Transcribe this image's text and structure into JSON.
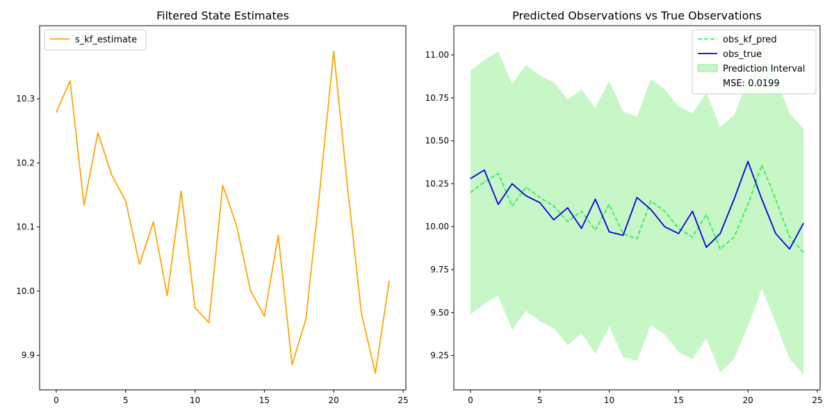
{
  "chart_data": [
    {
      "type": "line",
      "title": "Filtered State Estimates",
      "xlabel": "",
      "ylabel": "",
      "xlim": [
        -1.2,
        25.2
      ],
      "ylim": [
        9.846,
        10.414
      ],
      "xticks": [
        0,
        5,
        10,
        15,
        20,
        25
      ],
      "xtick_labels": [
        "0",
        "5",
        "10",
        "15",
        "20",
        "25"
      ],
      "yticks": [
        9.9,
        10.0,
        10.1,
        10.2,
        10.3
      ],
      "ytick_labels": [
        "9.9",
        "10.0",
        "10.1",
        "10.2",
        "10.3"
      ],
      "grid": false,
      "legend_position": "upper-left",
      "series": [
        {
          "name": "s_kf_estimate",
          "color": "#FFA500",
          "style": "solid",
          "x": [
            0,
            1,
            2,
            3,
            4,
            5,
            6,
            7,
            8,
            9,
            10,
            11,
            12,
            13,
            14,
            15,
            16,
            17,
            18,
            19,
            20,
            21,
            22,
            23,
            24
          ],
          "y": [
            10.279,
            10.328,
            10.134,
            10.247,
            10.181,
            10.141,
            10.042,
            10.108,
            9.993,
            10.156,
            9.974,
            9.951,
            10.165,
            10.102,
            10.001,
            9.961,
            10.087,
            9.885,
            9.957,
            10.158,
            10.374,
            10.161,
            9.965,
            9.872,
            10.016
          ]
        }
      ]
    },
    {
      "type": "line",
      "title": "Predicted Observations vs True Observations",
      "xlabel": "",
      "ylabel": "",
      "xlim": [
        -1.2,
        25.2
      ],
      "ylim": [
        9.05,
        11.17
      ],
      "xticks": [
        0,
        5,
        10,
        15,
        20,
        25
      ],
      "xtick_labels": [
        "0",
        "5",
        "10",
        "15",
        "20",
        "25"
      ],
      "yticks": [
        9.25,
        9.5,
        9.75,
        10.0,
        10.25,
        10.5,
        10.75,
        11.0
      ],
      "ytick_labels": [
        "9.25",
        "9.50",
        "9.75",
        "10.00",
        "10.25",
        "10.50",
        "10.75",
        "11.00"
      ],
      "grid": false,
      "legend_position": "upper-right",
      "annotation": "MSE: 0.0199",
      "band": {
        "name": "Prediction Interval",
        "color": "#90EE90",
        "x": [
          0,
          1,
          2,
          3,
          4,
          5,
          6,
          7,
          8,
          9,
          10,
          11,
          12,
          13,
          14,
          15,
          16,
          17,
          18,
          19,
          20,
          21,
          22,
          23,
          24
        ],
        "lower": [
          9.49,
          9.55,
          9.6,
          9.4,
          9.51,
          9.45,
          9.41,
          9.31,
          9.38,
          9.26,
          9.42,
          9.24,
          9.22,
          9.43,
          9.37,
          9.27,
          9.23,
          9.35,
          9.15,
          9.23,
          9.42,
          9.64,
          9.44,
          9.23,
          9.14
        ],
        "upper": [
          10.91,
          10.97,
          11.02,
          10.83,
          10.94,
          10.88,
          10.84,
          10.74,
          10.8,
          10.69,
          10.85,
          10.67,
          10.64,
          10.86,
          10.8,
          10.7,
          10.66,
          10.78,
          10.58,
          10.65,
          10.85,
          11.07,
          10.87,
          10.66,
          10.57
        ]
      },
      "series": [
        {
          "name": "obs_kf_pred",
          "color": "#33EE55",
          "style": "dashed",
          "x": [
            0,
            1,
            2,
            3,
            4,
            5,
            6,
            7,
            8,
            9,
            10,
            11,
            12,
            13,
            14,
            15,
            16,
            17,
            18,
            19,
            20,
            21,
            22,
            23,
            24
          ],
          "y": [
            10.2,
            10.26,
            10.31,
            10.12,
            10.23,
            10.17,
            10.12,
            10.03,
            10.09,
            9.98,
            10.13,
            9.96,
            9.93,
            10.15,
            10.09,
            9.99,
            9.94,
            10.07,
            9.87,
            9.94,
            10.13,
            10.36,
            10.16,
            9.94,
            9.85
          ]
        },
        {
          "name": "obs_true",
          "color": "#0000DD",
          "style": "solid",
          "x": [
            0,
            1,
            2,
            3,
            4,
            5,
            6,
            7,
            8,
            9,
            10,
            11,
            12,
            13,
            14,
            15,
            16,
            17,
            18,
            19,
            20,
            21,
            22,
            23,
            24
          ],
          "y": [
            10.28,
            10.33,
            10.13,
            10.25,
            10.18,
            10.14,
            10.04,
            10.11,
            9.99,
            10.16,
            9.97,
            9.95,
            10.17,
            10.1,
            10.0,
            9.96,
            10.09,
            9.88,
            9.96,
            10.16,
            10.38,
            10.16,
            9.96,
            9.87,
            10.02
          ]
        }
      ]
    }
  ]
}
